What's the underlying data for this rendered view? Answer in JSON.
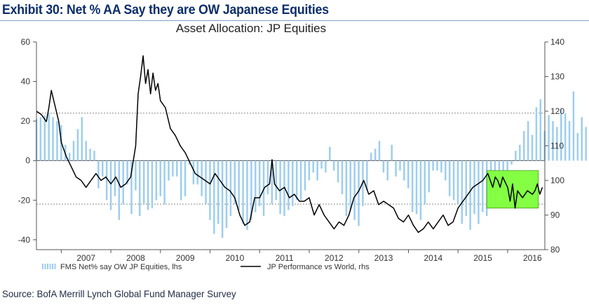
{
  "header": {
    "exhibit_title": "Exhibit 30: Net % AA Say they are OW Japanese Equities"
  },
  "footer": {
    "source": "Source: BofA Merrill Lynch Global Fund Manager Survey"
  },
  "colors": {
    "bar": "#9dcdf0",
    "line": "#000000",
    "highlight": "#7dff3a",
    "highlight_border": "#4a9a1a",
    "title": "#0b2d6b",
    "axis": "#555555",
    "dashed": "#777777"
  },
  "chart_data": {
    "type": "bar+line",
    "title": "Asset Allocation: JP Equities",
    "x_start": 2006.5,
    "x_end": 2016.75,
    "x_tick_labels": [
      "2007",
      "2008",
      "2009",
      "2010",
      "2011",
      "2012",
      "2013",
      "2014",
      "2015",
      "2016"
    ],
    "x_tick_positions": [
      2007,
      2008,
      2009,
      2010,
      2011,
      2012,
      2013,
      2014,
      2015,
      2016
    ],
    "left_axis": {
      "min": -45,
      "max": 60,
      "ticks": [
        60,
        40,
        20,
        0,
        -20,
        -40
      ],
      "labels": [
        "60",
        "40",
        "20",
        "0",
        "-20",
        "-40"
      ]
    },
    "right_axis": {
      "min": 80,
      "max": 140,
      "ticks": [
        140,
        130,
        120,
        110,
        100,
        90,
        80
      ],
      "labels": [
        "140",
        "130",
        "120",
        "110",
        "100",
        "90",
        "80"
      ]
    },
    "reference_lines_lhs": [
      24,
      -22
    ],
    "series": [
      {
        "name": "FMS Net% say OW JP Equities, lhs",
        "axis": "left",
        "type": "bar",
        "x_start": 2006.5,
        "step": 0.0833,
        "values": [
          21,
          22,
          23,
          24,
          22,
          20,
          18,
          8,
          4,
          10,
          16,
          22,
          10,
          6,
          5,
          -14,
          -8,
          -20,
          -25,
          -18,
          -30,
          -22,
          -12,
          -27,
          -15,
          -28,
          -22,
          -25,
          -24,
          -20,
          -18,
          -22,
          -10,
          -8,
          -8,
          -20,
          -18,
          -2,
          -12,
          -12,
          -18,
          -22,
          -30,
          -37,
          -32,
          -39,
          -34,
          -28,
          -22,
          -25,
          -32,
          -35,
          -30,
          -26,
          -23,
          -28,
          -17,
          -22,
          -20,
          -27,
          -28,
          -25,
          -23,
          -20,
          -20,
          -15,
          -10,
          -6,
          -10,
          -4,
          -6,
          7,
          -5,
          -11,
          -17,
          -28,
          -25,
          -30,
          -33,
          -23,
          -15,
          4,
          6,
          10,
          -6,
          -10,
          8,
          -8,
          -5,
          -10,
          -14,
          -26,
          -27,
          -30,
          -22,
          -16,
          -5,
          -5,
          -6,
          -10,
          -18,
          -20,
          -22,
          -32,
          -28,
          -35,
          -27,
          -32,
          -26,
          -28,
          -18,
          -23,
          -14,
          -18,
          -10,
          -2,
          5,
          8,
          15,
          20,
          13,
          27,
          31,
          15,
          23,
          20,
          17,
          26,
          24,
          20,
          35,
          14,
          22,
          17,
          31,
          36,
          27,
          24,
          31,
          25,
          20,
          14,
          28,
          8,
          15,
          20,
          21,
          30,
          25,
          33,
          30,
          32,
          28,
          35,
          45,
          40,
          37,
          31,
          28,
          34,
          40,
          30,
          33,
          36,
          38,
          24,
          26,
          20,
          28,
          33,
          31,
          24,
          20,
          15,
          5,
          -4,
          -8,
          -5,
          -6,
          -4,
          -8,
          -4,
          -6,
          -5,
          -3,
          -7,
          -4,
          -5,
          -2
        ]
      },
      {
        "name": "JP Performance vs World, rhs",
        "axis": "right",
        "type": "line",
        "points": [
          [
            2006.5,
            120
          ],
          [
            2006.6,
            119
          ],
          [
            2006.7,
            117
          ],
          [
            2006.75,
            121
          ],
          [
            2006.8,
            126
          ],
          [
            2006.9,
            120
          ],
          [
            2006.95,
            117
          ],
          [
            2007.0,
            111
          ],
          [
            2007.1,
            107
          ],
          [
            2007.2,
            104
          ],
          [
            2007.3,
            101
          ],
          [
            2007.4,
            100
          ],
          [
            2007.5,
            98
          ],
          [
            2007.6,
            100
          ],
          [
            2007.7,
            102
          ],
          [
            2007.8,
            100
          ],
          [
            2007.9,
            101
          ],
          [
            2008.0,
            99
          ],
          [
            2008.1,
            101
          ],
          [
            2008.2,
            98
          ],
          [
            2008.3,
            99
          ],
          [
            2008.4,
            101
          ],
          [
            2008.5,
            110
          ],
          [
            2008.55,
            125
          ],
          [
            2008.6,
            130
          ],
          [
            2008.65,
            136
          ],
          [
            2008.7,
            128
          ],
          [
            2008.75,
            132
          ],
          [
            2008.8,
            125
          ],
          [
            2008.85,
            131
          ],
          [
            2008.9,
            126
          ],
          [
            2008.95,
            128
          ],
          [
            2009.0,
            123
          ],
          [
            2009.1,
            121
          ],
          [
            2009.2,
            115
          ],
          [
            2009.3,
            113
          ],
          [
            2009.4,
            110
          ],
          [
            2009.5,
            108
          ],
          [
            2009.6,
            105
          ],
          [
            2009.7,
            102
          ],
          [
            2009.8,
            101
          ],
          [
            2009.9,
            100
          ],
          [
            2010.0,
            99
          ],
          [
            2010.1,
            102
          ],
          [
            2010.2,
            100
          ],
          [
            2010.3,
            98
          ],
          [
            2010.4,
            97
          ],
          [
            2010.5,
            95
          ],
          [
            2010.6,
            90
          ],
          [
            2010.7,
            87
          ],
          [
            2010.8,
            88
          ],
          [
            2010.9,
            95
          ],
          [
            2011.0,
            95
          ],
          [
            2011.1,
            98
          ],
          [
            2011.2,
            99
          ],
          [
            2011.25,
            106
          ],
          [
            2011.3,
            99
          ],
          [
            2011.4,
            97
          ],
          [
            2011.5,
            98
          ],
          [
            2011.6,
            95
          ],
          [
            2011.7,
            96
          ],
          [
            2011.8,
            94
          ],
          [
            2011.9,
            94
          ],
          [
            2012.0,
            95
          ],
          [
            2012.1,
            90
          ],
          [
            2012.2,
            93
          ],
          [
            2012.3,
            90
          ],
          [
            2012.4,
            88
          ],
          [
            2012.5,
            86
          ],
          [
            2012.6,
            88
          ],
          [
            2012.7,
            87
          ],
          [
            2012.8,
            90
          ],
          [
            2012.9,
            95
          ],
          [
            2013.0,
            97
          ],
          [
            2013.1,
            100
          ],
          [
            2013.2,
            96
          ],
          [
            2013.3,
            97
          ],
          [
            2013.4,
            93
          ],
          [
            2013.5,
            94
          ],
          [
            2013.6,
            93
          ],
          [
            2013.7,
            92
          ],
          [
            2013.8,
            89
          ],
          [
            2013.9,
            88
          ],
          [
            2014.0,
            90
          ],
          [
            2014.1,
            87
          ],
          [
            2014.2,
            85
          ],
          [
            2014.3,
            86
          ],
          [
            2014.4,
            88
          ],
          [
            2014.5,
            86
          ],
          [
            2014.6,
            88
          ],
          [
            2014.7,
            90
          ],
          [
            2014.8,
            87
          ],
          [
            2014.9,
            88
          ],
          [
            2015.0,
            92
          ],
          [
            2015.1,
            94
          ],
          [
            2015.2,
            96
          ],
          [
            2015.3,
            98
          ],
          [
            2015.4,
            99
          ],
          [
            2015.5,
            100
          ],
          [
            2015.6,
            102
          ],
          [
            2015.65,
            100
          ],
          [
            2015.7,
            98
          ],
          [
            2015.75,
            101
          ],
          [
            2015.8,
            100
          ],
          [
            2015.85,
            98
          ],
          [
            2015.9,
            101
          ],
          [
            2016.0,
            98
          ],
          [
            2016.05,
            94
          ],
          [
            2016.1,
            99
          ],
          [
            2016.15,
            92
          ],
          [
            2016.2,
            97
          ],
          [
            2016.3,
            95
          ],
          [
            2016.4,
            97
          ],
          [
            2016.5,
            96
          ],
          [
            2016.55,
            97
          ],
          [
            2016.6,
            99
          ],
          [
            2016.65,
            96
          ],
          [
            2016.7,
            98
          ]
        ]
      }
    ],
    "highlight_box": {
      "x_from": 2015.58,
      "x_to": 2016.62,
      "y_from_lhs": -5,
      "y_to_lhs": -24
    },
    "legend": {
      "position": "bottom",
      "bar_label": "FMS Net% say OW JP Equities, lhs",
      "line_label": "JP Performance vs World, rhs"
    }
  }
}
